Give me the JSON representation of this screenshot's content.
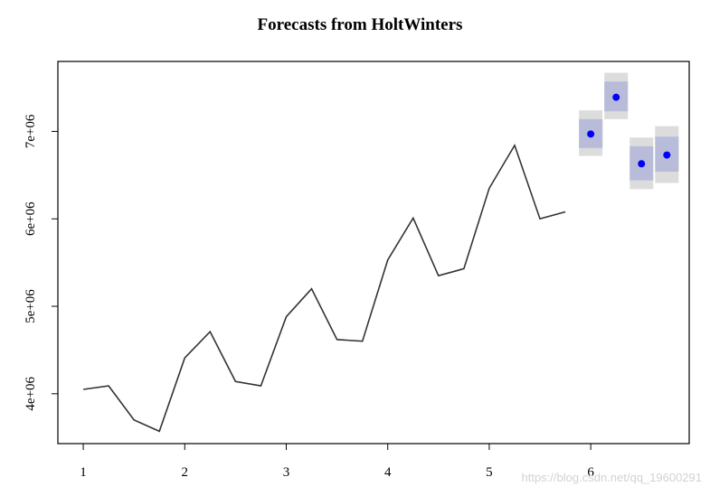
{
  "chart_data": {
    "type": "line",
    "title": "Forecasts from HoltWinters",
    "xlabel": "",
    "ylabel": "",
    "xlim": [
      0.75,
      6.97
    ],
    "ylim": [
      3430000,
      7800000
    ],
    "grid": false,
    "x_ticks": [
      1,
      2,
      3,
      4,
      5,
      6
    ],
    "x_tick_labels": [
      "1",
      "2",
      "3",
      "4",
      "5",
      "6"
    ],
    "y_ticks": [
      4000000,
      5000000,
      6000000,
      7000000
    ],
    "y_tick_labels": [
      "4e+06",
      "5e+06",
      "6e+06",
      "7e+06"
    ],
    "series": [
      {
        "x": [
          1,
          1.25,
          1.5,
          1.75,
          2,
          2.25,
          2.5,
          2.75,
          3,
          3.25,
          3.5,
          3.75,
          4,
          4.25,
          4.5,
          4.75,
          5,
          5.25,
          5.5,
          5.75
        ],
        "values": [
          4050000,
          4090000,
          3700000,
          3570000,
          4410000,
          4710000,
          4140000,
          4090000,
          4880000,
          5200000,
          4620000,
          4600000,
          5530000,
          6010000,
          5350000,
          5430000,
          6350000,
          6840000,
          6000000,
          6080000
        ],
        "color": "#333333"
      }
    ],
    "forecast": {
      "x": [
        6,
        6.25,
        6.5,
        6.75
      ],
      "values": [
        6970000,
        7390000,
        6630000,
        6730000
      ],
      "lo80": [
        6810000,
        7230000,
        6440000,
        6540000
      ],
      "hi80": [
        7140000,
        7570000,
        6830000,
        6940000
      ],
      "lo95": [
        6720000,
        7140000,
        6340000,
        6410000
      ],
      "hi95": [
        7240000,
        7670000,
        6930000,
        7060000
      ],
      "point_color": "#0000ff",
      "band80_color": "#b8bcd9",
      "band95_color": "#dcdcdc"
    },
    "watermark": "https://blog.csdn.net/qq_19600291"
  }
}
